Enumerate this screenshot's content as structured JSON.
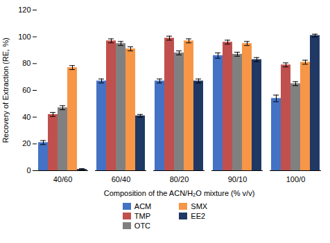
{
  "chart_data": {
    "type": "bar",
    "categories": [
      "40/60",
      "60/40",
      "80/20",
      "90/10",
      "100/0"
    ],
    "series": [
      {
        "name": "ACM",
        "color": "#4472C4",
        "values": [
          21,
          67,
          67,
          86,
          54
        ],
        "errors": [
          1.5,
          1.5,
          1.5,
          2.0,
          2.5
        ]
      },
      {
        "name": "TMP",
        "color": "#C0504D",
        "values": [
          42,
          97,
          99,
          96,
          79
        ],
        "errors": [
          1.5,
          1.5,
          1.5,
          1.5,
          1.5
        ]
      },
      {
        "name": "OTC",
        "color": "#808080",
        "values": [
          47,
          95,
          88,
          87,
          65
        ],
        "errors": [
          1.5,
          1.5,
          1.5,
          1.5,
          1.5
        ]
      },
      {
        "name": "SMX",
        "color": "#F79646",
        "values": [
          77,
          91,
          97,
          95,
          81
        ],
        "errors": [
          1.5,
          1.5,
          1.5,
          1.5,
          1.5
        ]
      },
      {
        "name": "EE2",
        "color": "#1F3864",
        "values": [
          1,
          41,
          67,
          83,
          101
        ],
        "errors": [
          0.5,
          1.0,
          1.5,
          1.5,
          1.0
        ]
      }
    ],
    "xlabel": "Composition of the ACN/H₂O mixture (% v/v)",
    "ylabel": "Recovery of Extraction (RE, %)",
    "ylim": [
      0,
      120
    ],
    "yticks": [
      0,
      20,
      40,
      60,
      80,
      100,
      120
    ],
    "grid": false,
    "legend": "bottom"
  }
}
